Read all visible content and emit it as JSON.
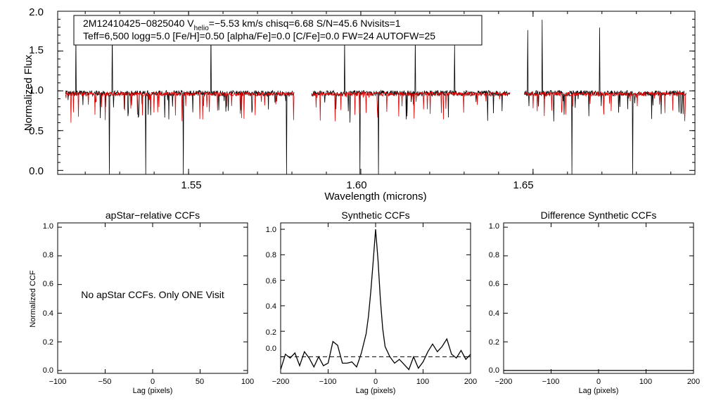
{
  "spectrum": {
    "type": "line",
    "info_line1_prefix": "2M12410425−0825040  V",
    "info_line1_sub": "helio",
    "info_line1_suffix": "=−5.53 km/s  chisq=6.68  S/N=45.6  Nvisits=1",
    "info_line2": "Teff=6,500 logg=5.0 [Fe/H]=0.50 [alpha/Fe]=0.0 [C/Fe]=0.0 FW=24 AUTOFW=25",
    "xlabel": "Wavelength (microns)",
    "ylabel": "Normalized Flux",
    "xlim": [
      1.512,
      1.697
    ],
    "ylim": [
      -0.05,
      2.0
    ],
    "xticks": [
      "1.55",
      "1.60",
      "1.65"
    ],
    "yticks": [
      "0.0",
      "0.5",
      "1.0",
      "1.5",
      "2.0"
    ],
    "segments": [
      [
        1.5143,
        1.5806
      ],
      [
        1.5857,
        1.6433
      ],
      [
        1.6475,
        1.6944
      ]
    ],
    "series": [
      {
        "name": "observed",
        "color": "#000000",
        "continuum": 0.97
      },
      {
        "name": "model",
        "color": "#e00000",
        "continuum": 0.96
      }
    ]
  },
  "ccf_panels": [
    {
      "type": "line",
      "title": "apStar−relative CCFs",
      "ylabel": "Normalized CCF",
      "xlabel": "Lag (pixels)",
      "xlim": [
        -100,
        100
      ],
      "ylim": [
        -0.02,
        1.03
      ],
      "xticks": [
        "−100",
        "−50",
        "0",
        "50",
        "100"
      ],
      "yticks": [
        "0.0",
        "0.2",
        "0.4",
        "0.6",
        "0.8",
        "1.0"
      ],
      "message": "No apStar CCFs.  Only ONE Visit"
    },
    {
      "type": "line",
      "title": "Synthetic CCFs",
      "xlabel": "Lag (pixels)",
      "xlim": [
        -200,
        200
      ],
      "ylim": [
        -0.13,
        1.05
      ],
      "xticks": [
        "−200",
        "−100",
        "0",
        "100",
        "200"
      ],
      "yticks": [
        "0.0",
        "0.2",
        "0.4",
        "0.6",
        "0.8",
        "1.0"
      ],
      "series": [
        {
          "name": "synthetic-ccf",
          "x": [
            -200,
            -190,
            -180,
            -170,
            -160,
            -150,
            -140,
            -130,
            -120,
            -110,
            -100,
            -90,
            -80,
            -70,
            -60,
            -50,
            -40,
            -30,
            -20,
            -15,
            -10,
            -5,
            0,
            5,
            10,
            15,
            20,
            30,
            40,
            50,
            60,
            70,
            80,
            90,
            100,
            110,
            120,
            130,
            140,
            150,
            160,
            170,
            180,
            190,
            200
          ],
          "y": [
            -0.1,
            0.02,
            -0.01,
            0.03,
            -0.07,
            0.04,
            -0.01,
            -0.08,
            0.0,
            -0.07,
            -0.05,
            0.12,
            0.09,
            -0.05,
            -0.05,
            -0.04,
            -0.08,
            0.03,
            0.18,
            0.32,
            0.52,
            0.75,
            1.0,
            0.76,
            0.45,
            0.22,
            0.08,
            0.0,
            -0.05,
            -0.02,
            -0.06,
            -0.1,
            0.0,
            -0.09,
            -0.04,
            0.04,
            0.1,
            0.04,
            0.08,
            0.14,
            0.02,
            -0.01,
            0.05,
            -0.02,
            0.02
          ]
        }
      ],
      "reference_line_y": 0.0
    },
    {
      "type": "line",
      "title": "Difference Synthetic CCFs",
      "xlabel": "Lag (pixels)",
      "xlim": [
        -200,
        200
      ],
      "ylim": [
        -0.02,
        1.03
      ],
      "xticks": [
        "−200",
        "−100",
        "0",
        "100",
        "200"
      ],
      "yticks": [
        "0.0",
        "0.2",
        "0.4",
        "0.6",
        "0.8",
        "1.0"
      ],
      "series": [
        {
          "name": "difference",
          "x": [
            -200,
            200
          ],
          "y": [
            0.0,
            0.0
          ]
        }
      ]
    }
  ]
}
